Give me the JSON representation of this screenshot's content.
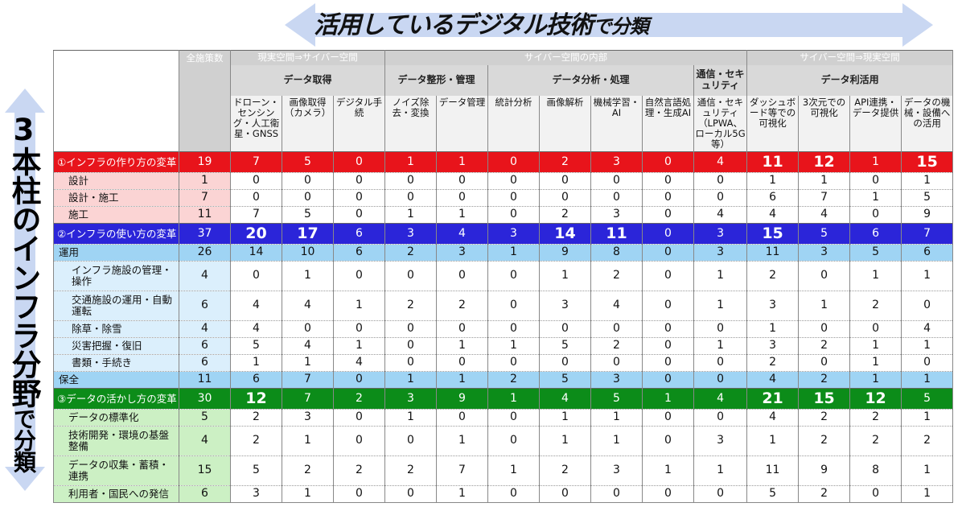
{
  "top_title": {
    "main": "活用しているデジタル技術",
    "suffix": "で分類"
  },
  "side_title": {
    "main": "3本柱のインフラ分野",
    "suffix": "で分類"
  },
  "header": {
    "total_label": "全施策数",
    "groups": [
      "現実空間⇒サイバー空間",
      "サイバー空間の内部",
      "サイバー空間⇒現実空間"
    ],
    "subgroups": [
      "データ取得",
      "データ整形・管理",
      "データ分析・処理",
      "通信・セキュリティ",
      "データ利活用"
    ],
    "columns": [
      "ドローン・センシング・人工衛星・GNSS",
      "画像取得（カメラ）",
      "デジタル手続",
      "ノイズ除去・変換",
      "データ管理",
      "統計分析",
      "画像解析",
      "機械学習・AI",
      "自然言語処理・生成AI",
      "通信・セキュリティ（LPWA、ローカル5G等）",
      "ダッシュボード等での可視化",
      "3次元での可視化",
      "API連携・データ提供",
      "データの機械・設備への活用"
    ]
  },
  "rows": [
    {
      "label": "①インフラの作り方の変革",
      "values": [
        "19",
        "7",
        "5",
        "0",
        "1",
        "1",
        "0",
        "2",
        "3",
        "0",
        "4",
        "11",
        "12",
        "1",
        "15"
      ],
      "big": [
        11,
        12,
        14
      ]
    },
    {
      "label": "設計",
      "values": [
        "1",
        "0",
        "0",
        "0",
        "0",
        "0",
        "0",
        "0",
        "0",
        "0",
        "0",
        "1",
        "1",
        "0",
        "1"
      ]
    },
    {
      "label": "設計・施工",
      "values": [
        "7",
        "0",
        "0",
        "0",
        "0",
        "0",
        "0",
        "0",
        "0",
        "0",
        "0",
        "6",
        "7",
        "1",
        "5"
      ]
    },
    {
      "label": "施工",
      "values": [
        "11",
        "7",
        "5",
        "0",
        "1",
        "1",
        "0",
        "2",
        "3",
        "0",
        "4",
        "4",
        "4",
        "0",
        "9"
      ]
    },
    {
      "label": "②インフラの使い方の変革",
      "values": [
        "37",
        "20",
        "17",
        "6",
        "3",
        "4",
        "3",
        "14",
        "11",
        "0",
        "3",
        "15",
        "5",
        "6",
        "7"
      ],
      "big": [
        1,
        2,
        7,
        8,
        11
      ]
    },
    {
      "label": "運用",
      "values": [
        "26",
        "14",
        "10",
        "6",
        "2",
        "3",
        "1",
        "9",
        "8",
        "0",
        "3",
        "11",
        "3",
        "5",
        "6"
      ]
    },
    {
      "label": "インフラ施設の管理・操作",
      "values": [
        "4",
        "0",
        "1",
        "0",
        "0",
        "0",
        "0",
        "1",
        "2",
        "0",
        "1",
        "2",
        "0",
        "1",
        "1"
      ]
    },
    {
      "label": "交通施設の運用・自動運転",
      "values": [
        "6",
        "4",
        "4",
        "1",
        "2",
        "2",
        "0",
        "3",
        "4",
        "0",
        "1",
        "3",
        "1",
        "2",
        "0"
      ]
    },
    {
      "label": "除草・除雪",
      "values": [
        "4",
        "4",
        "0",
        "0",
        "0",
        "0",
        "0",
        "0",
        "0",
        "0",
        "0",
        "1",
        "0",
        "0",
        "4"
      ]
    },
    {
      "label": "災害把握・復旧",
      "values": [
        "6",
        "5",
        "4",
        "1",
        "0",
        "1",
        "1",
        "5",
        "2",
        "0",
        "1",
        "3",
        "2",
        "1",
        "1"
      ]
    },
    {
      "label": "書類・手続き",
      "values": [
        "6",
        "1",
        "1",
        "4",
        "0",
        "0",
        "0",
        "0",
        "0",
        "0",
        "0",
        "2",
        "0",
        "1",
        "0"
      ]
    },
    {
      "label": "保全",
      "values": [
        "11",
        "6",
        "7",
        "0",
        "1",
        "1",
        "2",
        "5",
        "3",
        "0",
        "0",
        "4",
        "2",
        "1",
        "1"
      ]
    },
    {
      "label": "③データの活かし方の変革",
      "values": [
        "30",
        "12",
        "7",
        "2",
        "3",
        "9",
        "1",
        "4",
        "5",
        "1",
        "4",
        "21",
        "15",
        "12",
        "5"
      ],
      "big": [
        1,
        11,
        12,
        13
      ]
    },
    {
      "label": "データの標準化",
      "values": [
        "5",
        "2",
        "3",
        "0",
        "1",
        "0",
        "0",
        "1",
        "1",
        "0",
        "0",
        "4",
        "2",
        "2",
        "1"
      ]
    },
    {
      "label": "技術開発・環境の基盤整備",
      "values": [
        "4",
        "2",
        "1",
        "0",
        "0",
        "1",
        "0",
        "1",
        "1",
        "0",
        "3",
        "1",
        "2",
        "2",
        "2"
      ]
    },
    {
      "label": "データの収集・蓄積・連携",
      "values": [
        "15",
        "5",
        "2",
        "2",
        "2",
        "7",
        "1",
        "2",
        "3",
        "1",
        "1",
        "11",
        "9",
        "8",
        "1"
      ]
    },
    {
      "label": "利用者・国民への発信",
      "values": [
        "6",
        "3",
        "1",
        "0",
        "0",
        "1",
        "0",
        "0",
        "0",
        "0",
        "0",
        "5",
        "2",
        "0",
        "1"
      ]
    }
  ],
  "colors": {
    "red": "#e8141b",
    "blue": "#2b25d9",
    "green": "#0c8c19",
    "arrow": "#c9d7f2"
  }
}
